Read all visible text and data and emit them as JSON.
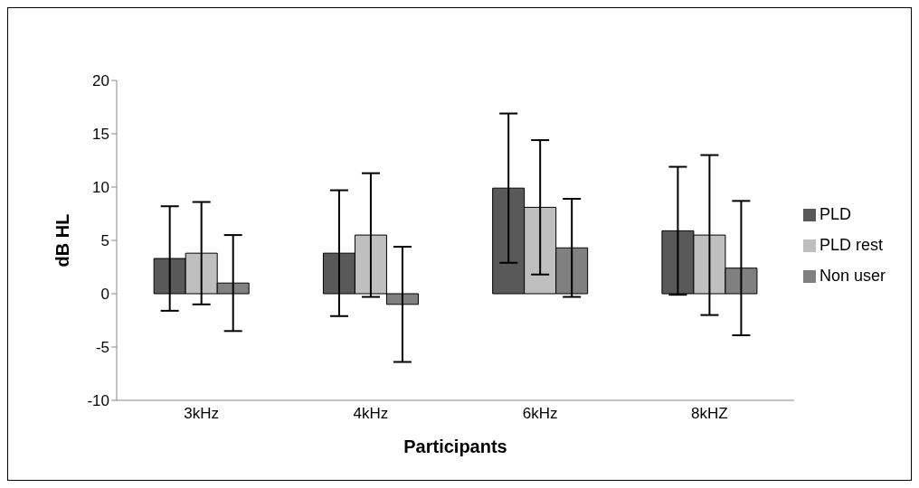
{
  "chart_data": {
    "type": "bar",
    "xlabel": "Participants",
    "ylabel": "dB HL",
    "categories": [
      "3kHz",
      "4kHz",
      "6kHz",
      "8kHZ"
    ],
    "series": [
      {
        "name": "PLD",
        "color": "#595959",
        "values": [
          3.3,
          3.8,
          9.9,
          5.9
        ],
        "errors": [
          4.9,
          5.9,
          7.0,
          6.0
        ]
      },
      {
        "name": "PLD rest",
        "color": "#bfbfbf",
        "values": [
          3.8,
          5.5,
          8.1,
          5.5
        ],
        "errors": [
          4.8,
          5.8,
          6.3,
          7.5
        ]
      },
      {
        "name": "Non user",
        "color": "#808080",
        "values": [
          1.0,
          -1.0,
          4.3,
          2.4
        ],
        "errors": [
          4.5,
          5.4,
          4.6,
          6.3
        ]
      }
    ],
    "ylim": [
      -10,
      20
    ],
    "yticks": [
      -10,
      -5,
      0,
      5,
      10,
      15,
      20
    ],
    "grid": false,
    "legend": "right"
  }
}
